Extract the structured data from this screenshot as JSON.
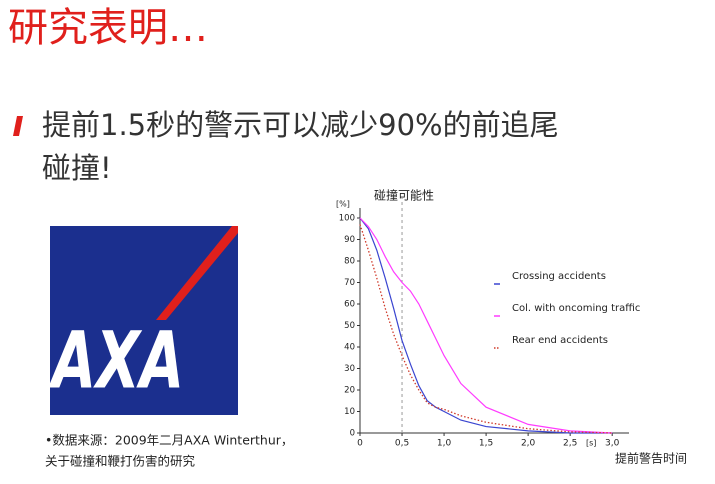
{
  "title": "研究表明…",
  "bullet_lines": [
    "提前1.5秒的警示可以减少90%的前追尾",
    "碰撞!"
  ],
  "logo": "AXA",
  "source_lines": [
    "•数据来源：2009年二月AXA Winterthur，",
    "关于碰撞和鞭打伤害的研究"
  ],
  "chart_data": {
    "type": "line",
    "annotations": [
      "碰撞可能性",
      "提前警告时间"
    ],
    "x_label": "[s]",
    "y_label": "[%]",
    "x": [
      0,
      0.1,
      0.2,
      0.3,
      0.4,
      0.5,
      0.6,
      0.7,
      0.8,
      0.9,
      1.0,
      1.2,
      1.5,
      2.0,
      2.5,
      3.0
    ],
    "series": [
      {
        "name": "Crossing accidents",
        "color": "#3a45d0",
        "style": "solid",
        "values": [
          100,
          95,
          85,
          72,
          58,
          43,
          32,
          22,
          15,
          12,
          10,
          6,
          3,
          1,
          0,
          0
        ]
      },
      {
        "name": "Col. with oncoming traffic",
        "color": "#ff3cff",
        "style": "solid",
        "values": [
          100,
          96,
          90,
          82,
          75,
          70,
          66,
          60,
          52,
          44,
          36,
          23,
          12,
          4,
          1,
          0
        ]
      },
      {
        "name": "Rear end accidents",
        "color": "#d03a2a",
        "style": "dotted",
        "values": [
          97,
          85,
          72,
          58,
          46,
          36,
          27,
          20,
          14,
          12,
          11,
          8,
          5,
          2,
          0.5,
          0
        ]
      }
    ],
    "marker_line_x": 0.5,
    "xlim": [
      0,
      3.2
    ],
    "xticks": [
      0,
      {
        "value": 0.5,
        "label": "0,5"
      },
      {
        "value": 1.0,
        "label": "1,0"
      },
      {
        "value": 1.5,
        "label": "1,5"
      },
      {
        "value": 2.0,
        "label": "2,0"
      },
      {
        "value": 2.5,
        "label": "2,5"
      },
      {
        "value": 3.0,
        "label": "3,0"
      }
    ],
    "ylim": [
      0,
      100
    ],
    "yticks": [
      0,
      10,
      20,
      30,
      40,
      50,
      60,
      70,
      80,
      90,
      100
    ]
  }
}
